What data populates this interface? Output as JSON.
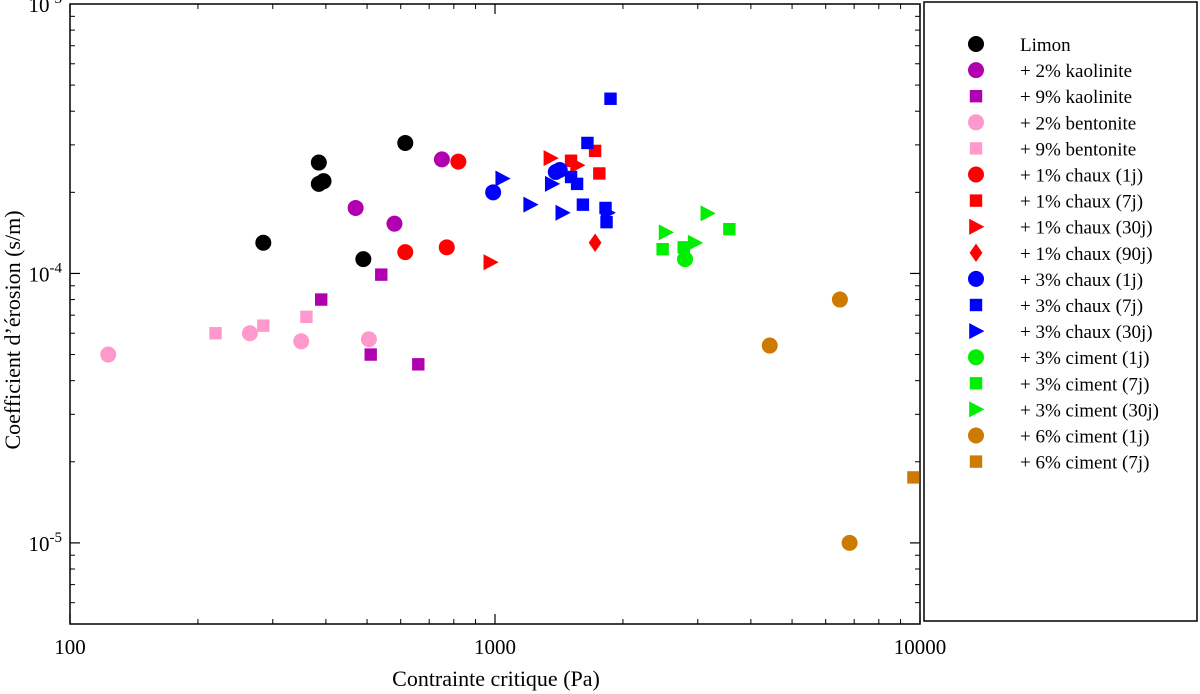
{
  "chart_data": {
    "type": "scatter",
    "title": "",
    "xlabel": "Contrainte critique (Pa)",
    "ylabel": "Coefficient d’érosion (s/m)",
    "x_scale": "log",
    "y_scale": "log",
    "xlim": [
      100,
      10000
    ],
    "ylim": [
      5e-06,
      0.001
    ],
    "x_ticks": [
      {
        "value": 100,
        "label": "100"
      },
      {
        "value": 1000,
        "label": "1000"
      },
      {
        "value": 10000,
        "label": "10000"
      }
    ],
    "y_ticks": [
      {
        "value": 0.001,
        "base": "10",
        "exp": "-3"
      },
      {
        "value": 0.0001,
        "base": "10",
        "exp": "-4"
      },
      {
        "value": 1e-05,
        "base": "10",
        "exp": "-5"
      }
    ],
    "grid": false,
    "legend_position": "right, outside plot",
    "series": [
      {
        "name": "Limon",
        "marker": "circle",
        "color": "#000000",
        "points": [
          [
            285,
            0.00013
          ],
          [
            385,
            0.000258
          ],
          [
            385,
            0.000215
          ],
          [
            395,
            0.00022
          ],
          [
            490,
            0.000113
          ],
          [
            615,
            0.000305
          ]
        ]
      },
      {
        "name": "+ 2% kaolinite",
        "marker": "circle",
        "color": "#b000b0",
        "points": [
          [
            470,
            0.000175
          ],
          [
            580,
            0.000153
          ],
          [
            750,
            0.000265
          ]
        ]
      },
      {
        "name": "+ 9% kaolinite",
        "marker": "square",
        "color": "#b000b0",
        "points": [
          [
            390,
            8e-05
          ],
          [
            510,
            5e-05
          ],
          [
            540,
            9.9e-05
          ],
          [
            660,
            4.6e-05
          ]
        ]
      },
      {
        "name": "+ 2% bentonite",
        "marker": "circle",
        "color": "#ff99cc",
        "points": [
          [
            123,
            5e-05
          ],
          [
            265,
            6e-05
          ],
          [
            350,
            5.6e-05
          ],
          [
            505,
            5.7e-05
          ]
        ]
      },
      {
        "name": "+ 9% bentonite",
        "marker": "square",
        "color": "#ff99cc",
        "points": [
          [
            220,
            6e-05
          ],
          [
            285,
            6.4e-05
          ],
          [
            360,
            6.9e-05
          ]
        ]
      },
      {
        "name": "+ 1% chaux (1j)",
        "marker": "circle",
        "color": "#ff0000",
        "points": [
          [
            615,
            0.00012
          ],
          [
            770,
            0.000125
          ],
          [
            820,
            0.00026
          ]
        ]
      },
      {
        "name": "+ 1% chaux (7j)",
        "marker": "square",
        "color": "#ff0000",
        "points": [
          [
            1510,
            0.000262
          ],
          [
            1720,
            0.000285
          ],
          [
            1760,
            0.000235
          ]
        ]
      },
      {
        "name": "+ 1% chaux (30j)",
        "marker": "triangle",
        "color": "#ff0000",
        "points": [
          [
            975,
            0.00011
          ],
          [
            1350,
            0.000268
          ],
          [
            1560,
            0.000252
          ]
        ]
      },
      {
        "name": "+ 1% chaux (90j)",
        "marker": "diamond",
        "color": "#ff0000",
        "points": [
          [
            1720,
            0.00013
          ]
        ]
      },
      {
        "name": "+ 3% chaux (1j)",
        "marker": "circle",
        "color": "#0000ff",
        "points": [
          [
            990,
            0.0002
          ],
          [
            1390,
            0.000238
          ],
          [
            1420,
            0.000242
          ]
        ]
      },
      {
        "name": "+ 3% chaux (7j)",
        "marker": "square",
        "color": "#0000ff",
        "points": [
          [
            1510,
            0.000228
          ],
          [
            1560,
            0.000215
          ],
          [
            1610,
            0.00018
          ],
          [
            1650,
            0.000305
          ],
          [
            1820,
            0.000175
          ],
          [
            1830,
            0.000155
          ],
          [
            1870,
            0.000445
          ]
        ]
      },
      {
        "name": "+ 3% chaux (30j)",
        "marker": "triangle",
        "color": "#0000ff",
        "points": [
          [
            1040,
            0.000225
          ],
          [
            1210,
            0.00018
          ],
          [
            1360,
            0.000215
          ],
          [
            1440,
            0.000168
          ],
          [
            1840,
            0.000168
          ]
        ]
      },
      {
        "name": "+ 3% ciment (1j)",
        "marker": "circle",
        "color": "#00ee00",
        "points": [
          [
            2800,
            0.000113
          ]
        ]
      },
      {
        "name": "+ 3% ciment (7j)",
        "marker": "square",
        "color": "#00ee00",
        "points": [
          [
            2480,
            0.000123
          ],
          [
            2780,
            0.000125
          ],
          [
            3560,
            0.000146
          ]
        ]
      },
      {
        "name": "+ 3% ciment (30j)",
        "marker": "triangle",
        "color": "#00ee00",
        "points": [
          [
            2520,
            0.000142
          ],
          [
            2950,
            0.00013
          ],
          [
            3160,
            0.000167
          ]
        ]
      },
      {
        "name": "+ 6% ciment (1j)",
        "marker": "circle",
        "color": "#cc7a00",
        "points": [
          [
            4430,
            5.4e-05
          ],
          [
            6480,
            8e-05
          ],
          [
            6830,
            1e-05
          ]
        ]
      },
      {
        "name": "+ 6% ciment (7j)",
        "marker": "square",
        "color": "#cc7a00",
        "points": [
          [
            9650,
            1.75e-05
          ]
        ]
      }
    ]
  }
}
